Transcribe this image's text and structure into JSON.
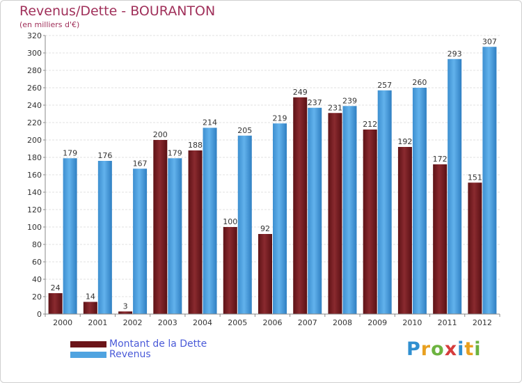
{
  "title": "Revenus/Dette - BOURANTON",
  "subtitle": "(en milliers d'€)",
  "logo": {
    "text": "Proxiti",
    "letters": [
      {
        "ch": "P",
        "color": "#2f8fd0"
      },
      {
        "ch": "r",
        "color": "#e8a020"
      },
      {
        "ch": "o",
        "color": "#6cb33f"
      },
      {
        "ch": "x",
        "color": "#d63c3c"
      },
      {
        "ch": "i",
        "color": "#2f8fd0"
      },
      {
        "ch": "t",
        "color": "#e8a020"
      },
      {
        "ch": "i",
        "color": "#6cb33f"
      }
    ]
  },
  "chart_data": {
    "type": "bar",
    "title": "Revenus/Dette - BOURANTON",
    "subtitle": "(en milliers d'€)",
    "categories": [
      "2000",
      "2001",
      "2002",
      "2003",
      "2004",
      "2005",
      "2006",
      "2007",
      "2008",
      "2009",
      "2010",
      "2011",
      "2012"
    ],
    "series": [
      {
        "name": "Montant de la Dette",
        "color": "#7a1f24",
        "values": [
          24,
          14,
          3,
          200,
          188,
          100,
          92,
          249,
          231,
          212,
          192,
          172,
          151
        ]
      },
      {
        "name": "Revenus",
        "color": "#4fa3e0",
        "values": [
          179,
          176,
          167,
          179,
          214,
          205,
          219,
          237,
          239,
          257,
          260,
          293,
          307
        ]
      }
    ],
    "ylim": [
      0,
      320
    ],
    "yticks": [
      0,
      20,
      40,
      60,
      80,
      100,
      120,
      140,
      160,
      180,
      200,
      220,
      240,
      260,
      280,
      300,
      320
    ],
    "grid": true,
    "legend": "bottom-left"
  }
}
